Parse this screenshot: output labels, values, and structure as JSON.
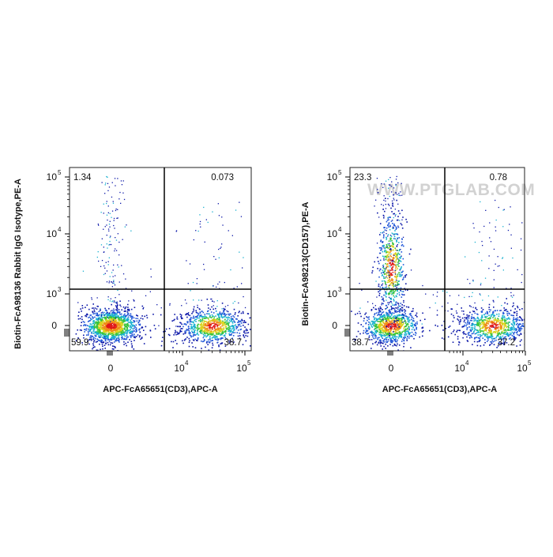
{
  "watermark": "WWW.PTGLAB.COM",
  "colormap": [
    "#0a16a8",
    "#1f55d8",
    "#17b0cf",
    "#38c43c",
    "#d9d21c",
    "#f08c18",
    "#e01818"
  ],
  "chart_data": [
    {
      "type": "scatter",
      "subtype": "flow-cytometry-density-dot-plot",
      "xlabel": "APC-FcA65651(CD3),APC-A",
      "ylabel": "Biotin-FcA98136 Rabbit IgG Isotype,PE-A",
      "x_scale": "biexponential",
      "y_scale": "biexponential",
      "x_ticks": [
        {
          "value": 0,
          "base": "0",
          "exp": ""
        },
        {
          "value": 10000,
          "base": "10",
          "exp": "4"
        },
        {
          "value": 100000,
          "base": "10",
          "exp": "5"
        }
      ],
      "y_ticks": [
        {
          "value": 0,
          "base": "0",
          "exp": ""
        },
        {
          "value": 1000,
          "base": "10",
          "exp": "3"
        },
        {
          "value": 10000,
          "base": "10",
          "exp": "4"
        },
        {
          "value": 100000,
          "base": "10",
          "exp": "5"
        }
      ],
      "quadrant_gate": {
        "x": 5000,
        "y": 1300
      },
      "quadrants": {
        "upper_left": "1.34",
        "upper_right": "0.073",
        "lower_left": "59.9",
        "lower_right": "38.7"
      },
      "populations": [
        {
          "name": "CD3-negative",
          "x_center": 0,
          "y_center": 0,
          "relative_count": 59.9
        },
        {
          "name": "CD3-positive",
          "x_center": 30000,
          "y_center": 0,
          "relative_count": 38.7
        }
      ]
    },
    {
      "type": "scatter",
      "subtype": "flow-cytometry-density-dot-plot",
      "xlabel": "APC-FcA65651(CD3),APC-A",
      "ylabel": "Biotin-FcA98213(CD157),PE-A",
      "x_scale": "biexponential",
      "y_scale": "biexponential",
      "x_ticks": [
        {
          "value": 0,
          "base": "0",
          "exp": ""
        },
        {
          "value": 10000,
          "base": "10",
          "exp": "4"
        },
        {
          "value": 100000,
          "base": "10",
          "exp": "5"
        }
      ],
      "y_ticks": [
        {
          "value": 0,
          "base": "0",
          "exp": ""
        },
        {
          "value": 1000,
          "base": "10",
          "exp": "3"
        },
        {
          "value": 10000,
          "base": "10",
          "exp": "4"
        },
        {
          "value": 100000,
          "base": "10",
          "exp": "5"
        }
      ],
      "quadrant_gate": {
        "x": 5000,
        "y": 1300
      },
      "quadrants": {
        "upper_left": "23.3",
        "upper_right": "0.78",
        "lower_left": "38.7",
        "lower_right": "37.2"
      },
      "populations": [
        {
          "name": "CD3-negative CD157-negative",
          "x_center": 0,
          "y_center": 0,
          "relative_count": 38.7
        },
        {
          "name": "CD3-negative CD157-positive",
          "x_center": 0,
          "y_center": 3000,
          "relative_count": 23.3
        },
        {
          "name": "CD3-positive",
          "x_center": 30000,
          "y_center": 0,
          "relative_count": 37.2
        }
      ]
    }
  ]
}
